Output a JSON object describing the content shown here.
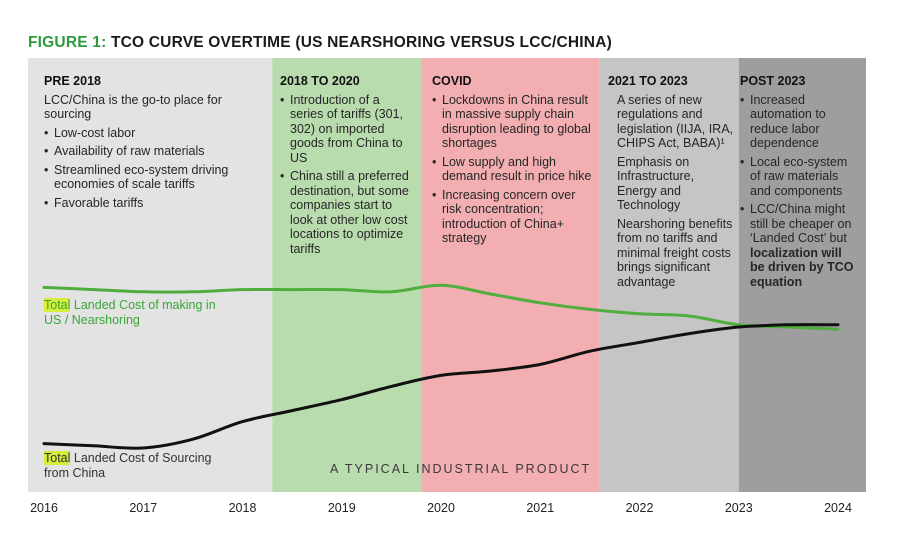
{
  "title": {
    "prefix": "FIGURE 1:",
    "text": "TCO CURVE OVERTIME (US NEARSHORING VERSUS LCC/CHINA)"
  },
  "colors": {
    "title_accent": "#2e9a3f",
    "period_bg": [
      "#e3e3e3",
      "#b9dcae",
      "#f2aeb0",
      "#c5c5c5",
      "#9e9e9e"
    ],
    "us_curve": "#4fae3d",
    "china_curve": "#111111",
    "highlight": "#d8ec3a"
  },
  "periods": [
    {
      "heading": "PRE 2018",
      "lead": "LCC/China is the go-to place for sourcing",
      "bullets": [
        "Low-cost labor",
        "Availability of raw materials",
        "Streamlined eco-system driving economies of scale tariffs",
        "Favorable tariffs"
      ]
    },
    {
      "heading": "2018 TO 2020",
      "lead": "",
      "bullets": [
        "Introduction of a series of tariffs (301, 302) on imported goods from China to US",
        "China still a preferred destination, but some companies start to look at other low cost locations to optimize tariffs"
      ]
    },
    {
      "heading": "COVID",
      "lead": "",
      "bullets": [
        "Lockdowns in China result in massive supply chain disruption leading to global shortages",
        "Low supply and high demand result in price hike",
        "Increasing concern over risk concentration; introduction of China+ strategy"
      ]
    },
    {
      "heading": "2021 TO 2023",
      "lead": "",
      "bullets": [
        "A series of new regulations and legislation (IIJA, IRA, CHIPS Act, BABA)¹",
        "Emphasis on Infrastructure, Energy and Technology",
        "Nearshoring benefits from no tariffs and minimal freight costs brings significant advantage"
      ]
    },
    {
      "heading": "POST 2023",
      "lead": "",
      "bullets": [
        "Increased automation to reduce labor dependence",
        "Local eco-system of raw materials and components"
      ],
      "last_bullet_plain": "LCC/China might still be cheaper on ‘Landed Cost’ but",
      "last_bullet_bold": "localization will be driven by TCO equation"
    }
  ],
  "labels": {
    "us_highlight": "Total",
    "us_rest": "Landed Cost of making in US / Nearshoring",
    "china_highlight": "Total",
    "china_rest": "Landed Cost of Sourcing from China",
    "product": "A TYPICAL INDUSTRIAL PRODUCT"
  },
  "chart_data": {
    "type": "line",
    "title": "TCO CURVE OVERTIME (US NEARSHORING VERSUS LCC/CHINA)",
    "x": [
      2016,
      2016.5,
      2017,
      2017.5,
      2018,
      2018.5,
      2019,
      2019.5,
      2020,
      2020.5,
      2021,
      2021.5,
      2022,
      2022.5,
      2023,
      2023.5,
      2024
    ],
    "x_ticks": [
      "2016",
      "2017",
      "2018",
      "2019",
      "2020",
      "2021",
      "2022",
      "2023",
      "2024"
    ],
    "series": [
      {
        "name": "Total Landed Cost of making in US / Nearshoring",
        "values": [
          0.83,
          0.82,
          0.81,
          0.81,
          0.82,
          0.82,
          0.82,
          0.81,
          0.84,
          0.8,
          0.76,
          0.73,
          0.71,
          0.7,
          0.66,
          0.65,
          0.64
        ]
      },
      {
        "name": "Total Landed Cost of Sourcing from China",
        "values": [
          0.12,
          0.11,
          0.1,
          0.14,
          0.22,
          0.27,
          0.32,
          0.38,
          0.43,
          0.45,
          0.48,
          0.54,
          0.58,
          0.62,
          0.65,
          0.66,
          0.66
        ]
      }
    ],
    "period_bounds": [
      2016,
      2018.3,
      2019.8,
      2021.6,
      2023,
      2024.3
    ],
    "ylim": [
      0,
      1
    ],
    "xlabel": "",
    "ylabel": "",
    "grid": false
  }
}
